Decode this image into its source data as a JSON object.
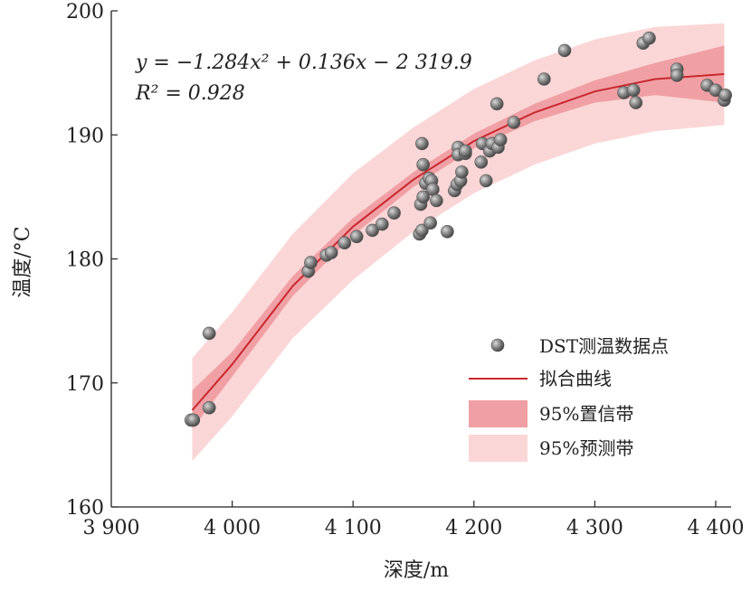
{
  "chart_data": {
    "type": "scatter",
    "title": "",
    "xlabel": "深度/m",
    "ylabel": "温度/°C",
    "xlim": [
      3900,
      4400
    ],
    "ylim": [
      160,
      200
    ],
    "x_ticks": [
      3900,
      4000,
      4100,
      4200,
      4300,
      4400
    ],
    "x_tick_labels": [
      "3 900",
      "4 000",
      "4 100",
      "4 200",
      "4 300",
      "4 400"
    ],
    "y_ticks": [
      160,
      170,
      180,
      190,
      200
    ],
    "y_tick_labels": [
      "160",
      "170",
      "180",
      "190",
      "200"
    ],
    "grid": false,
    "legend_position": "bottom-right",
    "equation": {
      "line1": "y = −1.284x² + 0.136x − 2 319.9",
      "line2": "R² = 0.928"
    },
    "legend": {
      "points": "DST测温数据点",
      "fit": "拟合曲线",
      "confidence": "95%置信带",
      "prediction": "95%预测带"
    },
    "colors": {
      "fit": "#c8282e",
      "confidence": "#f0a0a4",
      "prediction": "#fbd6d6",
      "points": "#7a7a7a"
    },
    "fit_curve": {
      "x": [
        3967,
        4000,
        4050,
        4100,
        4150,
        4200,
        4250,
        4300,
        4350,
        4407
      ],
      "y": [
        167.8,
        171.5,
        177.8,
        182.6,
        186.4,
        189.5,
        191.8,
        193.5,
        194.5,
        194.9
      ]
    },
    "confidence_band": {
      "x": [
        3967,
        4000,
        4050,
        4100,
        4150,
        4200,
        4250,
        4300,
        4350,
        4407
      ],
      "lower": [
        166.3,
        170.5,
        177.0,
        181.9,
        185.8,
        188.9,
        191.1,
        192.6,
        193.2,
        192.6
      ],
      "upper": [
        169.4,
        172.5,
        178.6,
        183.3,
        187.0,
        190.1,
        192.5,
        194.4,
        195.8,
        197.2
      ]
    },
    "prediction_band": {
      "x": [
        3967,
        4000,
        4050,
        4100,
        4150,
        4200,
        4250,
        4300,
        4350,
        4407
      ],
      "lower": [
        163.7,
        167.3,
        173.6,
        178.3,
        182.2,
        185.3,
        187.6,
        189.3,
        190.3,
        190.8
      ],
      "upper": [
        172.0,
        175.7,
        182.0,
        186.9,
        190.6,
        193.7,
        196.0,
        197.7,
        198.7,
        199.0
      ]
    },
    "points": {
      "x": [
        3966,
        3968,
        3981,
        3981,
        4063,
        4065,
        4078,
        4082,
        4093,
        4103,
        4116,
        4124,
        4134,
        4155,
        4156,
        4157,
        4157,
        4158,
        4158,
        4160,
        4163,
        4164,
        4165,
        4166,
        4169,
        4178,
        4184,
        4186,
        4187,
        4187,
        4189,
        4190,
        4193,
        4193,
        4206,
        4207,
        4210,
        4213,
        4215,
        4219,
        4220,
        4222,
        4233,
        4258,
        4275,
        4324,
        4332,
        4334,
        4340,
        4345,
        4368,
        4368,
        4393,
        4400,
        4407,
        4408
      ],
      "y": [
        167.0,
        167.0,
        168.0,
        174.0,
        179.0,
        179.7,
        180.3,
        180.5,
        181.3,
        181.8,
        182.3,
        182.8,
        183.7,
        182.0,
        184.4,
        182.3,
        189.3,
        187.6,
        185.0,
        186.1,
        186.5,
        182.9,
        186.3,
        185.6,
        184.7,
        182.2,
        185.5,
        186.0,
        189.0,
        188.4,
        186.3,
        187.0,
        188.5,
        188.7,
        187.8,
        189.3,
        186.3,
        188.7,
        189.3,
        192.5,
        189.0,
        189.6,
        191.0,
        194.5,
        196.8,
        193.4,
        193.6,
        192.6,
        197.4,
        197.8,
        195.3,
        194.8,
        194.0,
        193.6,
        192.8,
        193.2
      ]
    }
  }
}
